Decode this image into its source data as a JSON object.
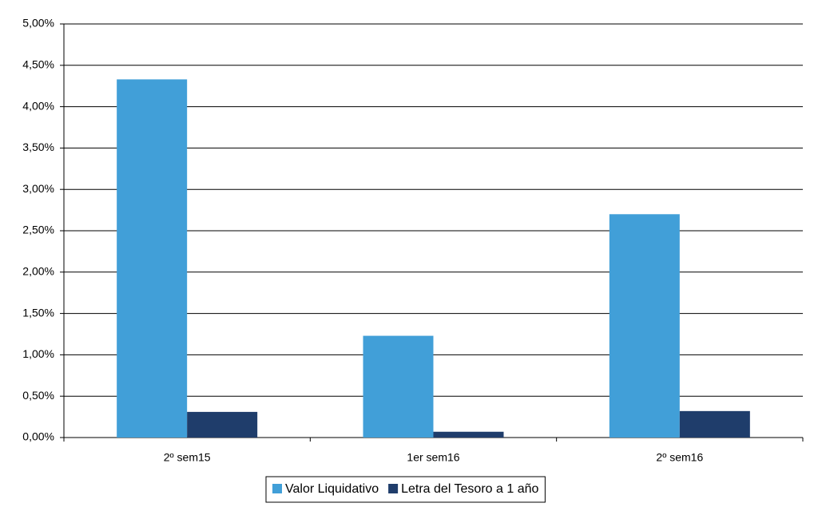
{
  "chart_data": {
    "type": "bar",
    "categories": [
      "2º sem15",
      "1er sem16",
      "2º sem16"
    ],
    "series": [
      {
        "name": "Valor Liquidativo",
        "color": "#419fd8",
        "values": [
          4.33,
          1.23,
          2.7
        ]
      },
      {
        "name": "Letra del Tesoro a 1 año",
        "color": "#1f3d6b",
        "values": [
          0.31,
          0.07,
          0.32
        ]
      }
    ],
    "ylim": [
      0,
      5
    ],
    "yticks": [
      {
        "value": 0,
        "label": "0,00%"
      },
      {
        "value": 0.5,
        "label": "0,50%"
      },
      {
        "value": 1,
        "label": "1,00%"
      },
      {
        "value": 1.5,
        "label": "1,50%"
      },
      {
        "value": 2,
        "label": "2,00%"
      },
      {
        "value": 2.5,
        "label": "2,50%"
      },
      {
        "value": 3,
        "label": "3,00%"
      },
      {
        "value": 3.5,
        "label": "3,50%"
      },
      {
        "value": 4,
        "label": "4,00%"
      },
      {
        "value": 4.5,
        "label": "4,50%"
      },
      {
        "value": 5,
        "label": "5,00%"
      }
    ],
    "grid": true,
    "legend": "bottom"
  }
}
